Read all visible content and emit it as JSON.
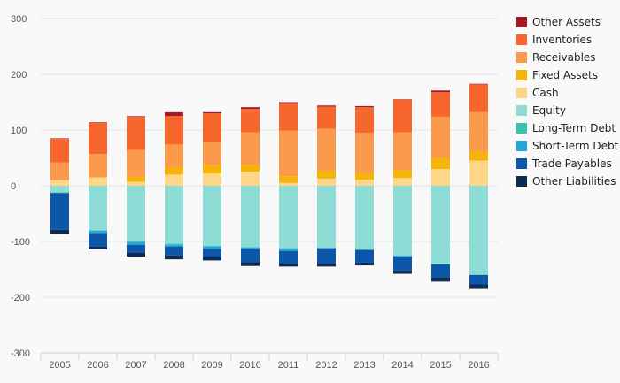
{
  "chart_data": {
    "type": "bar",
    "stacked": true,
    "grid": true,
    "legend_position": "right",
    "ylim": [
      -300,
      300
    ],
    "yticks": [
      300,
      200,
      100,
      0,
      -100,
      -200,
      -300
    ],
    "categories": [
      "2005",
      "2006",
      "2007",
      "2008",
      "2009",
      "2010",
      "2011",
      "2012",
      "2013",
      "2014",
      "2015",
      "2016"
    ],
    "series": [
      {
        "name": "Other Assets",
        "color": "#a31b23",
        "values": [
          1,
          1,
          1,
          7,
          2,
          3,
          3,
          2,
          2,
          1,
          3,
          1
        ]
      },
      {
        "name": "Inventories",
        "color": "#f7672d",
        "values": [
          42,
          56,
          60,
          51,
          51,
          42,
          48,
          40,
          46,
          58,
          44,
          50
        ]
      },
      {
        "name": "Receivables",
        "color": "#fb9a4b",
        "values": [
          32,
          42,
          48,
          40,
          42,
          58,
          82,
          75,
          72,
          68,
          74,
          70
        ]
      },
      {
        "name": "Fixed Assets",
        "color": "#f6b40b",
        "values": [
          0,
          0,
          9,
          14,
          15,
          13,
          12,
          14,
          12,
          14,
          20,
          17
        ]
      },
      {
        "name": "Cash",
        "color": "#fdd787",
        "values": [
          10,
          15,
          7,
          20,
          22,
          25,
          5,
          13,
          11,
          14,
          30,
          45
        ]
      },
      {
        "name": "Equity",
        "color": "#8dddd6",
        "values": [
          -12,
          -80,
          -100,
          -104,
          -108,
          -110,
          -112,
          -112,
          -115,
          -125,
          -140,
          -160
        ]
      },
      {
        "name": "Long-Term Debt",
        "color": "#37c5b3",
        "values": [
          -1,
          -1,
          -1,
          -2,
          -1,
          -1,
          -1,
          0,
          0,
          -1,
          -1,
          0
        ]
      },
      {
        "name": "Short-Term Debt",
        "color": "#23a6d8",
        "values": [
          0,
          -4,
          -5,
          -3,
          -4,
          -3,
          -4,
          0,
          0,
          -1,
          0,
          0
        ]
      },
      {
        "name": "Trade Payables",
        "color": "#0c57aa",
        "values": [
          -66,
          -24,
          -14,
          -16,
          -15,
          -23,
          -22,
          -28,
          -23,
          -25,
          -23,
          -17
        ]
      },
      {
        "name": "Other Liabilities",
        "color": "#0c2c56",
        "values": [
          -7,
          -5,
          -7,
          -7,
          -6,
          -7,
          -6,
          -5,
          -5,
          -6,
          -8,
          -8
        ]
      }
    ]
  }
}
